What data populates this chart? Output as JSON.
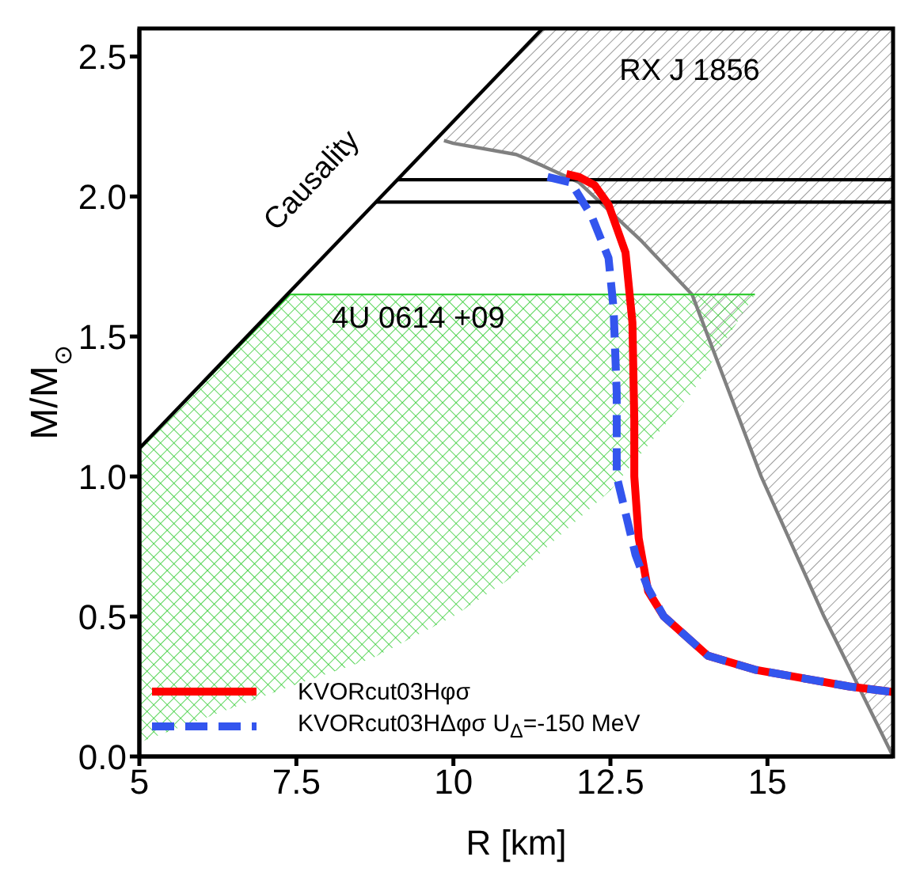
{
  "chart_data": {
    "type": "line",
    "xlabel": "R [km]",
    "ylabel": "M/M$_{⊙}$",
    "xlim": [
      5,
      17
    ],
    "ylim": [
      0,
      2.6
    ],
    "xticks": [
      5,
      7.5,
      10,
      12.5,
      15
    ],
    "yticks": [
      {
        "value": 0,
        "label": "0.0"
      },
      {
        "value": 0.5,
        "label": "0.5"
      },
      {
        "value": 1,
        "label": "1.0"
      },
      {
        "value": 1.5,
        "label": "1.5"
      },
      {
        "value": 2,
        "label": "2.0"
      },
      {
        "value": 2.5,
        "label": "2.5"
      }
    ],
    "legend": "bottom left",
    "annotations": [
      "RX J 1856",
      "4U 0614 +09",
      "Causality"
    ],
    "series": [
      {
        "color": "#808080",
        "x": [
          9.85,
          10,
          11,
          11.42,
          12,
          13,
          13.8,
          14.9,
          15.9,
          17
        ],
        "values": [
          2.2,
          2.19,
          2.15,
          2.11,
          2.05,
          1.84,
          1.65,
          1.0,
          0.5,
          0
        ],
        "lower": [
          2.2,
          2.19,
          2.15,
          2.11,
          2.05,
          1.84,
          1.65,
          1.0,
          0.5,
          0
        ],
        "upper": [
          2.2,
          2.27,
          2.5,
          2.6,
          2.6,
          2.6,
          2.6,
          2.6,
          2.6,
          2.6
        ]
      },
      {
        "color": "#33cc33",
        "x": [
          5,
          7.4,
          8.7,
          10,
          11,
          12.5,
          13.8,
          14.8
        ],
        "values": [
          1.1,
          1.65,
          1.65,
          1.65,
          1.65,
          1.65,
          1.65,
          1.65
        ],
        "lower": [
          0.05,
          0.25,
          0.35,
          0.5,
          0.65,
          0.95,
          1.3,
          1.65
        ],
        "upper": [
          1.1,
          1.65,
          1.65,
          1.65,
          1.65,
          1.65,
          1.65,
          1.65
        ]
      },
      {
        "color": "#000000",
        "x": [
          5,
          11.42
        ],
        "values": [
          1.1,
          2.6
        ]
      },
      {
        "color": "#000000",
        "x": [
          9.1,
          17
        ],
        "values": [
          2.06,
          2.06
        ]
      },
      {
        "color": "#000000",
        "x": [
          8.76,
          17
        ],
        "values": [
          1.98,
          1.98
        ]
      },
      {
        "name": "KVORcut03Hφσ",
        "color": "#ff0000",
        "line_style": "solid",
        "x": [
          11.8,
          12.0,
          12.25,
          12.47,
          12.74,
          12.85,
          12.88,
          12.88,
          12.95,
          13.1,
          13.35,
          13.6,
          14.05,
          14.8,
          15.55,
          16.3,
          17
        ],
        "values": [
          2.08,
          2.07,
          2.04,
          1.97,
          1.8,
          1.55,
          1.2,
          1.0,
          0.78,
          0.59,
          0.5,
          0.45,
          0.36,
          0.31,
          0.28,
          0.25,
          0.23
        ]
      },
      {
        "name": "KVORcut03HΔφσ U$_{Δ}$=-150 MeV",
        "color": "#3355ee",
        "line_style": "dashed",
        "x": [
          11.5,
          11.87,
          12.2,
          12.47,
          12.55,
          12.6,
          12.6,
          12.74,
          12.9,
          13.1,
          13.35,
          13.6,
          14.05,
          14.8,
          15.55,
          16.3,
          17
        ],
        "values": [
          2.07,
          2.05,
          1.93,
          1.78,
          1.6,
          1.3,
          1.0,
          0.87,
          0.72,
          0.6,
          0.5,
          0.45,
          0.36,
          0.31,
          0.28,
          0.25,
          0.23
        ]
      }
    ]
  }
}
